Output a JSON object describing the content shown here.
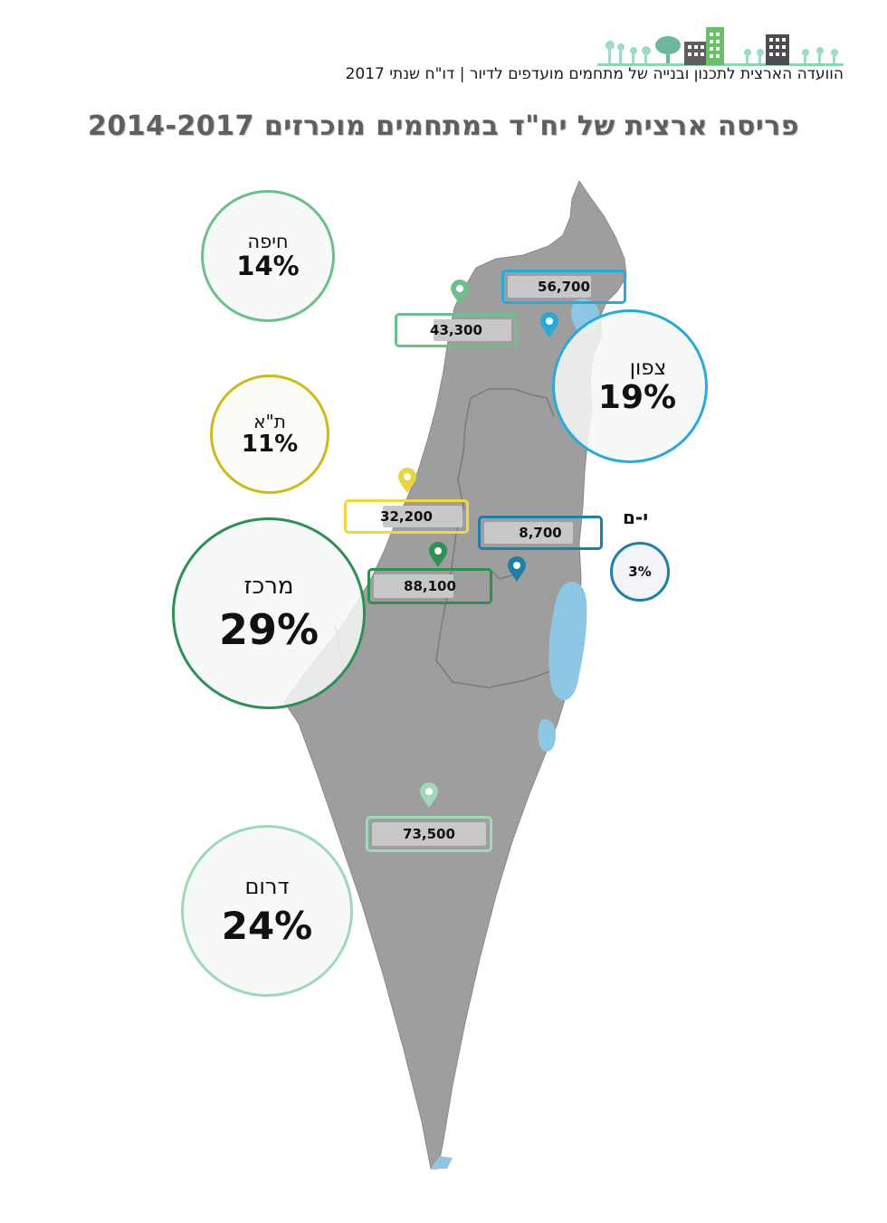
{
  "header": {
    "text": "הוועדה הארצית לתכנון ובנייה של מתחמים מועדפים לדיור | דו\"ח שנתי 2017"
  },
  "title": "פריסה ארצית של יח\"ד במתחמים מוכרזים 2014-2017",
  "colors": {
    "haifa": "#6dbf8b",
    "north": "#29a9d9",
    "tel_aviv": "#cdb920",
    "center": "#2f8f55",
    "south": "#9fd9b9",
    "jerusalem": "#1f7fa5",
    "map": "#9e9e9e",
    "water": "#8ec7e3"
  },
  "regions": {
    "haifa": {
      "name": "חיפה",
      "percent": "14%",
      "units": "43,300"
    },
    "north": {
      "name": "צפון",
      "percent": "19%",
      "units": "56,700"
    },
    "tel_aviv": {
      "name": "ת\"א",
      "percent": "11%",
      "units": "32,200"
    },
    "center": {
      "name": "מרכז",
      "percent": "29%",
      "units": "88,100"
    },
    "jerusalem": {
      "name": "י-ם",
      "percent": "3%",
      "units": "8,700"
    },
    "south": {
      "name": "דרום",
      "percent": "24%",
      "units": "73,500"
    }
  },
  "icons": [
    "map-pin-icon",
    "city-skyline-logo"
  ]
}
